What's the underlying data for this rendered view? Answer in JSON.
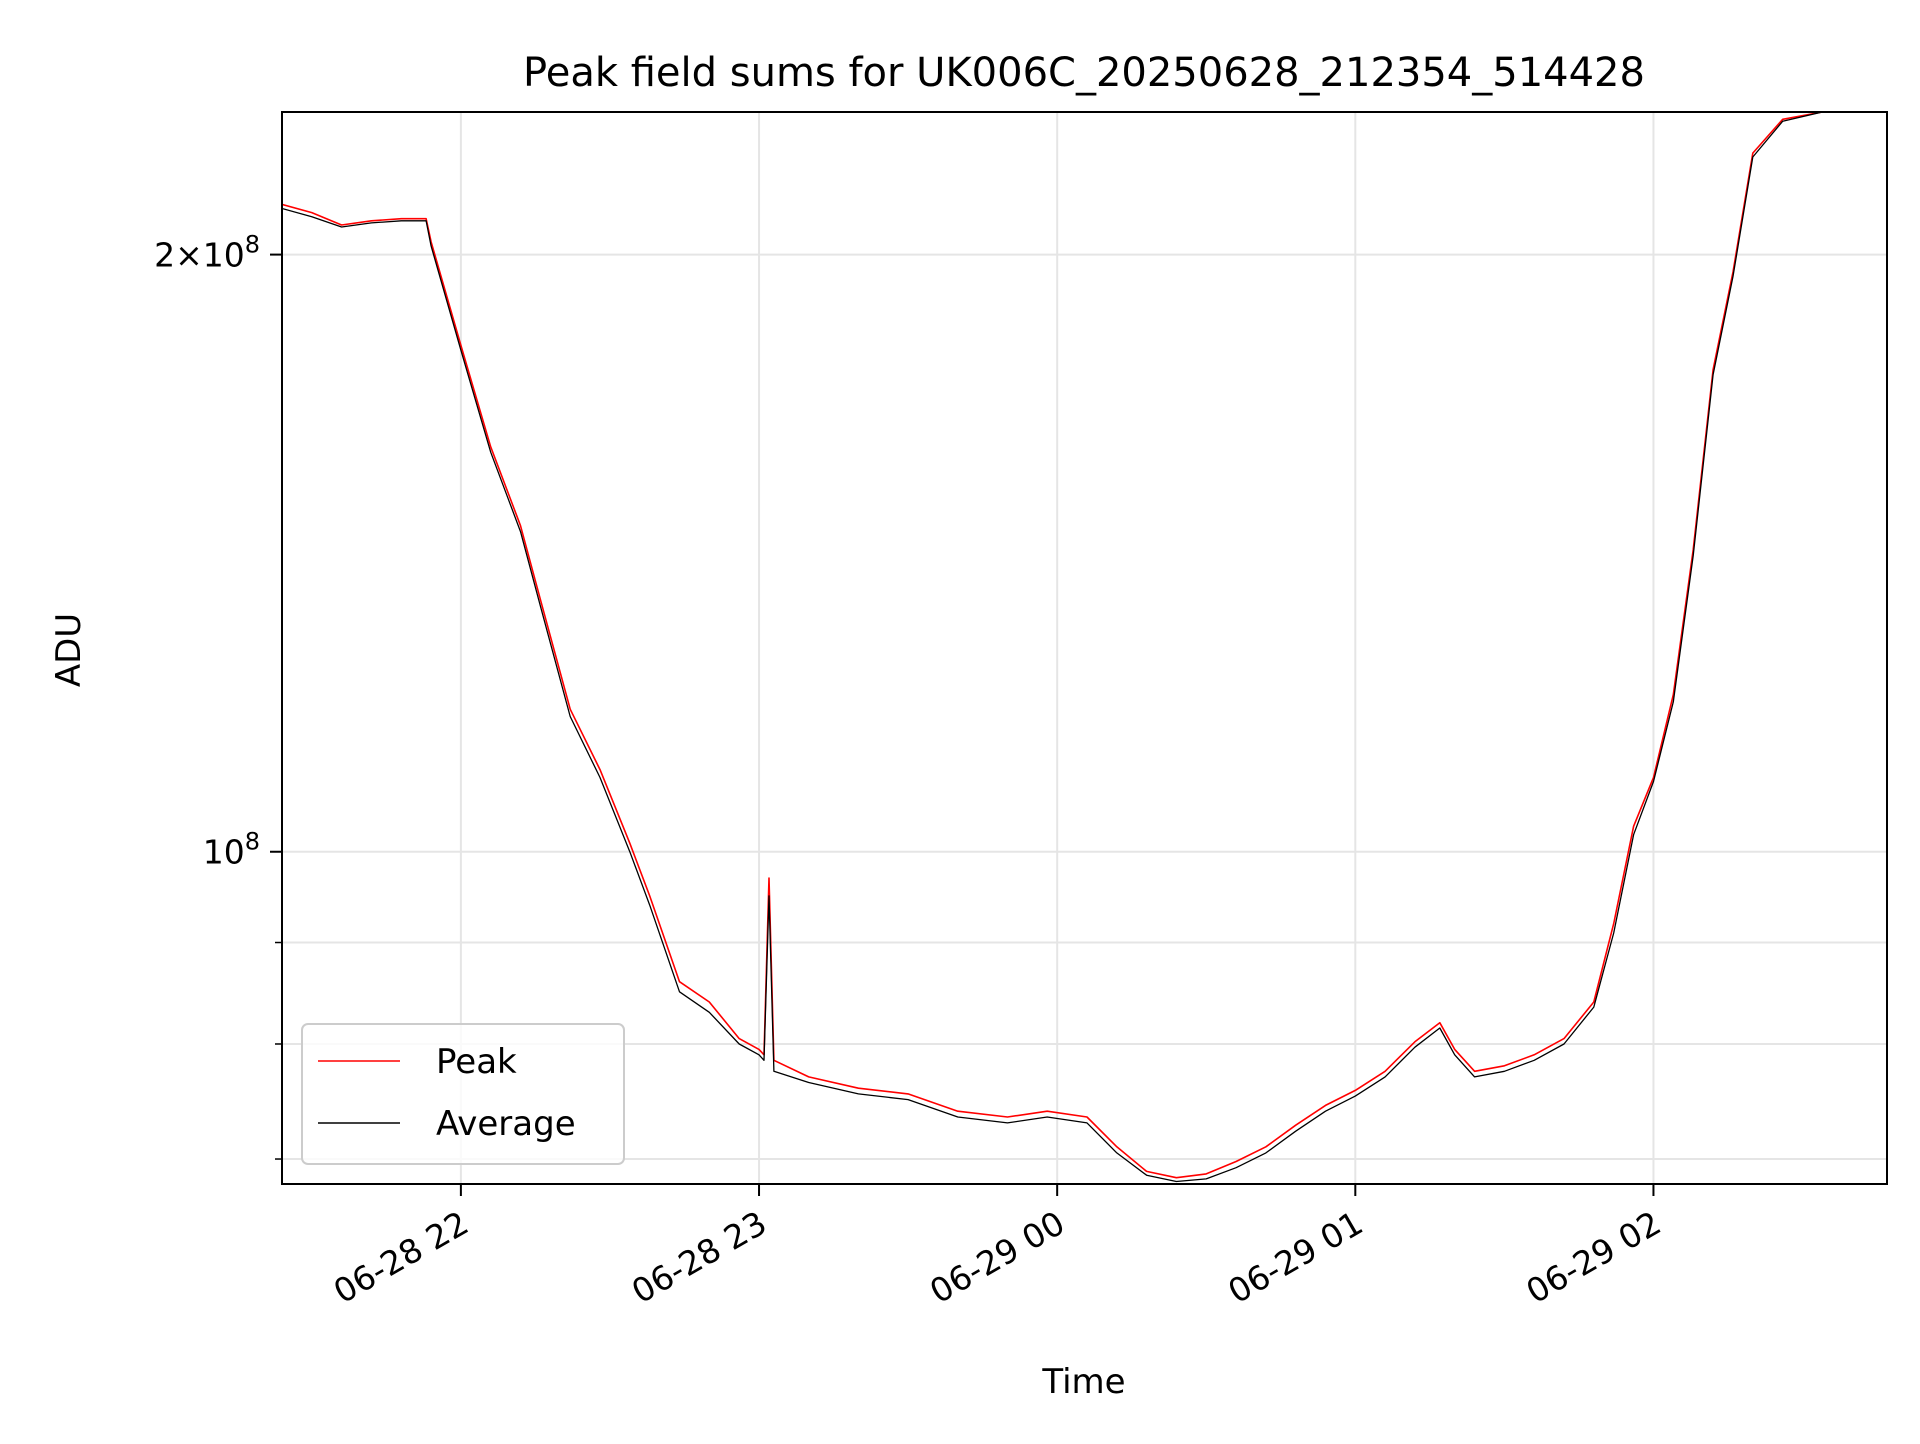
{
  "chart_data": {
    "type": "line",
    "title": "Peak field sums for UK006C_20250628_212354_514428",
    "xlabel": "Time",
    "ylabel": "ADU",
    "x_axis_type": "datetime",
    "y_scale": "log",
    "xlim": [
      "2025-06-28 21:24",
      "2025-06-29 02:47"
    ],
    "ylim": [
      68000000,
      236000000
    ],
    "grid": true,
    "legend_position": "lower left",
    "x_ticks": [
      {
        "value": "2025-06-28 22:00",
        "label": "06-28 22"
      },
      {
        "value": "2025-06-28 23:00",
        "label": "06-28 23"
      },
      {
        "value": "2025-06-29 00:00",
        "label": "06-29 00"
      },
      {
        "value": "2025-06-29 01:00",
        "label": "06-29 01"
      },
      {
        "value": "2025-06-29 02:00",
        "label": "06-29 02"
      }
    ],
    "y_major_ticks": [
      {
        "value": 100000000,
        "base": "10",
        "exp": "8",
        "mult": ""
      },
      {
        "value": 200000000,
        "base": "10",
        "exp": "8",
        "mult": "2"
      }
    ],
    "y_minor_ticks": [
      70000000,
      80000000,
      90000000
    ],
    "series": [
      {
        "name": "Peak",
        "color": "#ff0000",
        "points": [
          [
            "2025-06-28 21:24",
            212000000
          ],
          [
            "2025-06-28 21:30",
            210000000
          ],
          [
            "2025-06-28 21:36",
            207000000
          ],
          [
            "2025-06-28 21:42",
            208000000
          ],
          [
            "2025-06-28 21:48",
            208500000
          ],
          [
            "2025-06-28 21:53",
            208500000
          ],
          [
            "2025-06-28 21:54",
            203000000
          ],
          [
            "2025-06-28 22:00",
            180000000
          ],
          [
            "2025-06-28 22:06",
            160000000
          ],
          [
            "2025-06-28 22:12",
            146000000
          ],
          [
            "2025-06-28 22:16",
            134000000
          ],
          [
            "2025-06-28 22:22",
            118000000
          ],
          [
            "2025-06-28 22:28",
            110000000
          ],
          [
            "2025-06-28 22:34",
            101000000
          ],
          [
            "2025-06-28 22:38",
            95000000
          ],
          [
            "2025-06-28 22:44",
            86000000
          ],
          [
            "2025-06-28 22:50",
            84000000
          ],
          [
            "2025-06-28 22:56",
            80500000
          ],
          [
            "2025-06-28 23:00",
            79500000
          ],
          [
            "2025-06-28 23:01",
            79000000
          ],
          [
            "2025-06-28 23:02",
            97000000
          ],
          [
            "2025-06-28 23:03",
            78500000
          ],
          [
            "2025-06-28 23:10",
            77000000
          ],
          [
            "2025-06-28 23:20",
            76000000
          ],
          [
            "2025-06-28 23:30",
            75500000
          ],
          [
            "2025-06-28 23:40",
            74000000
          ],
          [
            "2025-06-28 23:50",
            73500000
          ],
          [
            "2025-06-28 23:58",
            74000000
          ],
          [
            "2025-06-29 00:06",
            73500000
          ],
          [
            "2025-06-29 00:12",
            71000000
          ],
          [
            "2025-06-29 00:18",
            69000000
          ],
          [
            "2025-06-29 00:24",
            68500000
          ],
          [
            "2025-06-29 00:30",
            68800000
          ],
          [
            "2025-06-29 00:36",
            69800000
          ],
          [
            "2025-06-29 00:42",
            71000000
          ],
          [
            "2025-06-29 00:48",
            72800000
          ],
          [
            "2025-06-29 00:54",
            74500000
          ],
          [
            "2025-06-29 01:00",
            75800000
          ],
          [
            "2025-06-29 01:06",
            77500000
          ],
          [
            "2025-06-29 01:12",
            80200000
          ],
          [
            "2025-06-29 01:17",
            82000000
          ],
          [
            "2025-06-29 01:20",
            79500000
          ],
          [
            "2025-06-29 01:24",
            77500000
          ],
          [
            "2025-06-29 01:30",
            78000000
          ],
          [
            "2025-06-29 01:36",
            79000000
          ],
          [
            "2025-06-29 01:42",
            80500000
          ],
          [
            "2025-06-29 01:48",
            84000000
          ],
          [
            "2025-06-29 01:52",
            92000000
          ],
          [
            "2025-06-29 01:56",
            103000000
          ],
          [
            "2025-06-29 02:00",
            109000000
          ],
          [
            "2025-06-29 02:04",
            120000000
          ],
          [
            "2025-06-29 02:08",
            142000000
          ],
          [
            "2025-06-29 02:12",
            175000000
          ],
          [
            "2025-06-29 02:16",
            196000000
          ],
          [
            "2025-06-29 02:20",
            225000000
          ],
          [
            "2025-06-29 02:26",
            234000000
          ],
          [
            "2025-06-29 02:34",
            236000000
          ],
          [
            "2025-06-29 02:47",
            236000000
          ]
        ]
      },
      {
        "name": "Average",
        "color": "#000000",
        "points": [
          [
            "2025-06-28 21:24",
            211000000
          ],
          [
            "2025-06-28 21:30",
            209000000
          ],
          [
            "2025-06-28 21:36",
            206500000
          ],
          [
            "2025-06-28 21:42",
            207500000
          ],
          [
            "2025-06-28 21:48",
            208000000
          ],
          [
            "2025-06-28 21:53",
            208000000
          ],
          [
            "2025-06-28 21:54",
            202000000
          ],
          [
            "2025-06-28 22:00",
            179000000
          ],
          [
            "2025-06-28 22:06",
            159000000
          ],
          [
            "2025-06-28 22:12",
            145000000
          ],
          [
            "2025-06-28 22:16",
            133000000
          ],
          [
            "2025-06-28 22:22",
            117000000
          ],
          [
            "2025-06-28 22:28",
            109000000
          ],
          [
            "2025-06-28 22:34",
            100000000
          ],
          [
            "2025-06-28 22:38",
            94000000
          ],
          [
            "2025-06-28 22:44",
            85000000
          ],
          [
            "2025-06-28 22:50",
            83000000
          ],
          [
            "2025-06-28 22:56",
            80000000
          ],
          [
            "2025-06-28 23:00",
            79000000
          ],
          [
            "2025-06-28 23:01",
            78500000
          ],
          [
            "2025-06-28 23:02",
            95000000
          ],
          [
            "2025-06-28 23:03",
            77500000
          ],
          [
            "2025-06-28 23:10",
            76500000
          ],
          [
            "2025-06-28 23:20",
            75500000
          ],
          [
            "2025-06-28 23:30",
            75000000
          ],
          [
            "2025-06-28 23:40",
            73500000
          ],
          [
            "2025-06-28 23:50",
            73000000
          ],
          [
            "2025-06-28 23:58",
            73500000
          ],
          [
            "2025-06-29 00:06",
            73000000
          ],
          [
            "2025-06-29 00:12",
            70500000
          ],
          [
            "2025-06-29 00:18",
            68700000
          ],
          [
            "2025-06-29 00:24",
            68200000
          ],
          [
            "2025-06-29 00:30",
            68400000
          ],
          [
            "2025-06-29 00:36",
            69300000
          ],
          [
            "2025-06-29 00:42",
            70500000
          ],
          [
            "2025-06-29 00:48",
            72300000
          ],
          [
            "2025-06-29 00:54",
            74000000
          ],
          [
            "2025-06-29 01:00",
            75300000
          ],
          [
            "2025-06-29 01:06",
            77000000
          ],
          [
            "2025-06-29 01:12",
            79700000
          ],
          [
            "2025-06-29 01:17",
            81500000
          ],
          [
            "2025-06-29 01:20",
            79000000
          ],
          [
            "2025-06-29 01:24",
            77000000
          ],
          [
            "2025-06-29 01:30",
            77500000
          ],
          [
            "2025-06-29 01:36",
            78500000
          ],
          [
            "2025-06-29 01:42",
            80000000
          ],
          [
            "2025-06-29 01:48",
            83500000
          ],
          [
            "2025-06-29 01:52",
            91000000
          ],
          [
            "2025-06-29 01:56",
            102000000
          ],
          [
            "2025-06-29 02:00",
            108500000
          ],
          [
            "2025-06-29 02:04",
            119000000
          ],
          [
            "2025-06-29 02:08",
            141000000
          ],
          [
            "2025-06-29 02:12",
            174000000
          ],
          [
            "2025-06-29 02:16",
            195000000
          ],
          [
            "2025-06-29 02:20",
            224000000
          ],
          [
            "2025-06-29 02:26",
            233500000
          ],
          [
            "2025-06-29 02:34",
            236000000
          ],
          [
            "2025-06-29 02:47",
            236000000
          ]
        ]
      }
    ]
  }
}
